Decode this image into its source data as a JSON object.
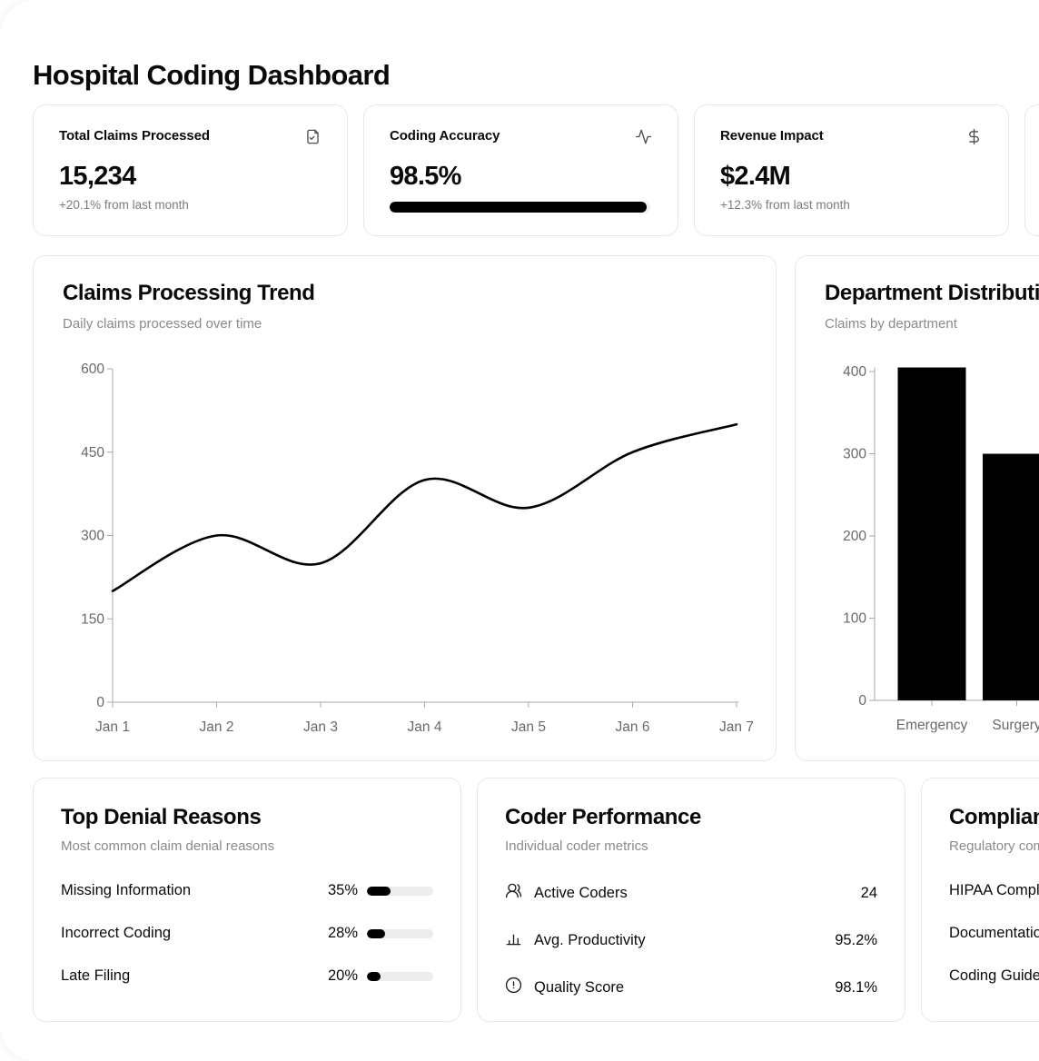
{
  "page": {
    "title": "Hospital Coding Dashboard"
  },
  "stat_cards": [
    {
      "label": "Total Claims Processed",
      "icon": "file-check-icon",
      "value": "15,234",
      "change": "+20.1% from last month"
    },
    {
      "label": "Coding Accuracy",
      "icon": "activity-icon",
      "value": "98.5%",
      "progress_pct": 98.5
    },
    {
      "label": "Revenue Impact",
      "icon": "dollar-icon",
      "value": "$2.4M",
      "change": "+12.3% from last month"
    }
  ],
  "chart_data": [
    {
      "type": "line",
      "title": "Claims Processing Trend",
      "subtitle": "Daily claims processed over time",
      "x": [
        "Jan 1",
        "Jan 2",
        "Jan 3",
        "Jan 4",
        "Jan 5",
        "Jan 6",
        "Jan 7"
      ],
      "values": [
        200,
        300,
        250,
        400,
        350,
        450,
        500
      ],
      "xlabel": "",
      "ylabel": "",
      "ylim": [
        0,
        600
      ],
      "yticks": [
        0,
        150,
        300,
        450,
        600
      ],
      "grid": false,
      "legend": "none",
      "line_color": "#000000"
    },
    {
      "type": "bar",
      "title": "Department Distribution",
      "subtitle": "Claims by department",
      "categories": [
        "Emergency",
        "Surgery"
      ],
      "values": [
        405,
        300
      ],
      "xlabel": "",
      "ylabel": "",
      "ylim": [
        0,
        405
      ],
      "yticks": [
        0,
        100,
        200,
        300,
        400
      ],
      "grid": false,
      "legend": "none",
      "bar_color": "#000000",
      "note": "card clipped at right edge of viewport"
    }
  ],
  "denial_reasons": {
    "title": "Top Denial Reasons",
    "subtitle": "Most common claim denial reasons",
    "items": [
      {
        "label": "Missing Information",
        "pct": "35%",
        "value": 35
      },
      {
        "label": "Incorrect Coding",
        "pct": "28%",
        "value": 28
      },
      {
        "label": "Late Filing",
        "pct": "20%",
        "value": 20
      }
    ]
  },
  "coder_performance": {
    "title": "Coder Performance",
    "subtitle": "Individual coder metrics",
    "items": [
      {
        "icon": "users-icon",
        "label": "Active Coders",
        "value": "24"
      },
      {
        "icon": "bar-chart-icon",
        "label": "Avg. Productivity",
        "value": "95.2%"
      },
      {
        "icon": "alert-circle-icon",
        "label": "Quality Score",
        "value": "98.1%"
      }
    ]
  },
  "compliance": {
    "title": "Compliance Status",
    "subtitle": "Regulatory compliance metrics",
    "items": [
      {
        "label": "HIPAA Compliance"
      },
      {
        "label": "Documentation"
      },
      {
        "label": "Coding Guidelines"
      }
    ]
  }
}
